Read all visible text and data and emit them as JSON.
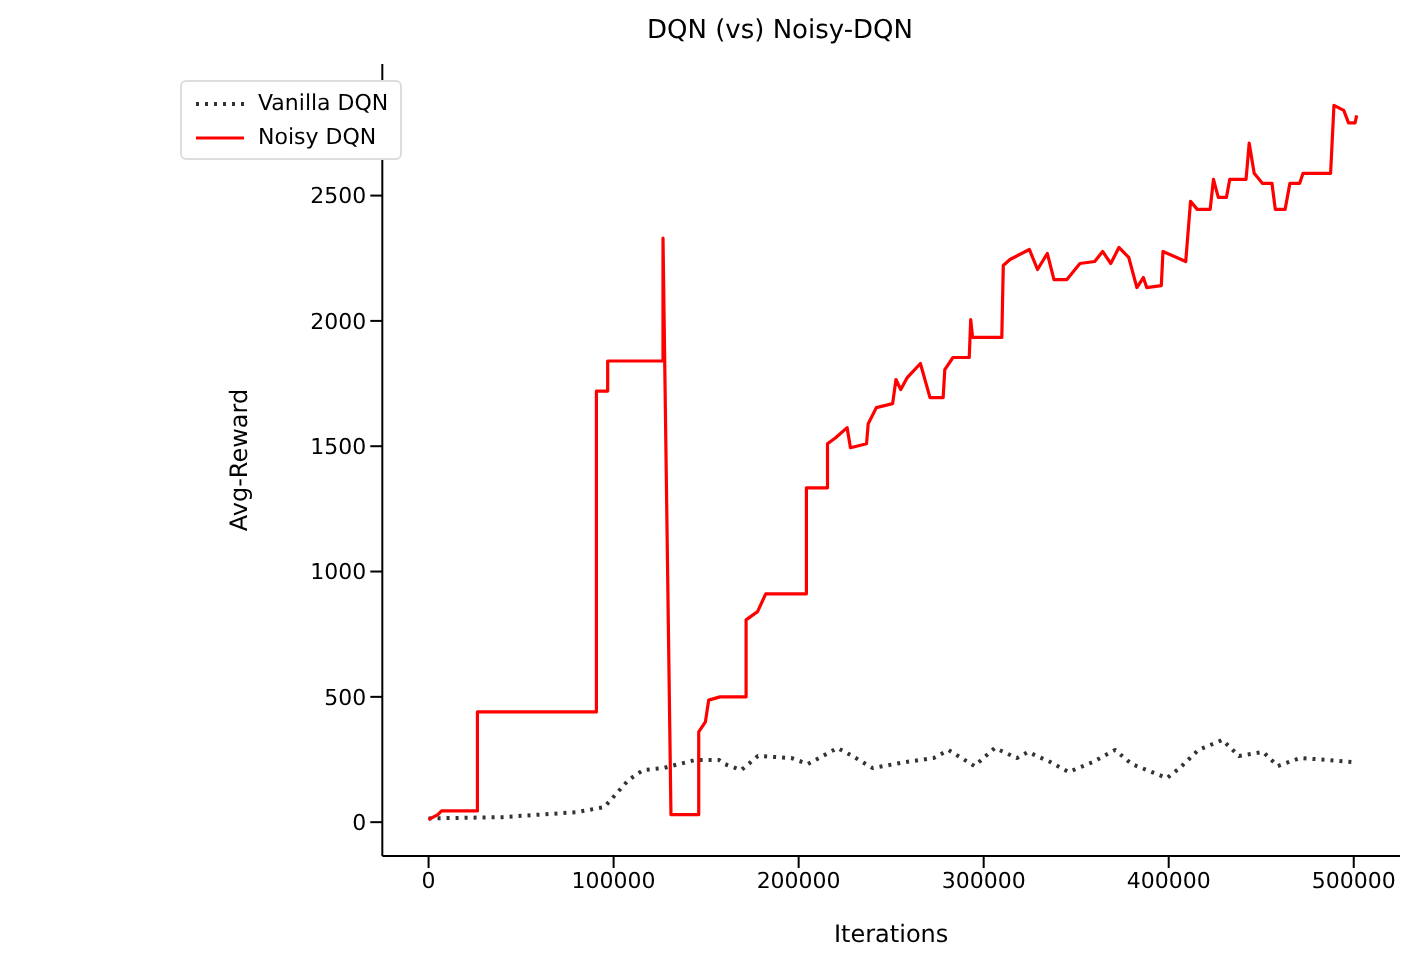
{
  "chart_data": {
    "type": "line",
    "title": "DQN (vs) Noisy-DQN",
    "xlabel": "Iterations",
    "ylabel": "Avg-Reward",
    "xlim": [
      -25000,
      525000
    ],
    "xticks": [
      0,
      100000,
      200000,
      300000,
      400000,
      500000
    ],
    "ylim": [
      -135,
      3025
    ],
    "yticks": [
      0,
      500,
      1000,
      1500,
      2000,
      2500
    ],
    "grid": false,
    "legend": "top left",
    "series": [
      {
        "name": "Vanilla DQN",
        "color": "#333333",
        "line_style": "dotted",
        "x": [
          0,
          40000,
          80000,
          95000,
          108000,
          116000,
          127000,
          144000,
          157000,
          160000,
          169000,
          178000,
          196000,
          205000,
          221000,
          229000,
          240000,
          258000,
          273000,
          281000,
          295000,
          306000,
          318000,
          324000,
          336000,
          346000,
          359000,
          371000,
          380000,
          399000,
          406000,
          416000,
          429000,
          438000,
          451000,
          459000,
          471000,
          486000,
          499000
        ],
        "values": [
          15,
          20,
          40,
          60,
          168,
          208,
          216,
          248,
          248,
          232,
          208,
          264,
          256,
          232,
          296,
          264,
          216,
          240,
          256,
          288,
          224,
          296,
          256,
          280,
          240,
          200,
          240,
          288,
          232,
          176,
          216,
          288,
          328,
          264,
          280,
          224,
          256,
          248,
          240
        ]
      },
      {
        "name": "Noisy DQN",
        "color": "#ff0000",
        "line_style": "solid",
        "x": [
          0,
          5000,
          7000,
          26400,
          26400,
          90700,
          90700,
          96800,
          96800,
          126700,
          126700,
          131000,
          146000,
          146000,
          149600,
          151400,
          157500,
          171600,
          171600,
          177800,
          182200,
          204200,
          204200,
          215600,
          215600,
          220000,
          226200,
          228000,
          236700,
          237600,
          242000,
          250800,
          252600,
          255200,
          258700,
          265800,
          271000,
          278100,
          279000,
          283400,
          292200,
          293000,
          294000,
          309800,
          310600,
          314200,
          324700,
          329100,
          334400,
          338000,
          345000,
          352000,
          360000,
          364300,
          368700,
          373100,
          378400,
          382800,
          386300,
          388100,
          396000,
          396900,
          409200,
          411800,
          415400,
          422400,
          424200,
          426800,
          431200,
          433000,
          441800,
          443500,
          446200,
          450600,
          455800,
          457600,
          462900,
          465500,
          470800,
          472600,
          487500,
          489300,
          494600,
          497200,
          500700,
          501600
        ],
        "values": [
          10,
          30,
          45,
          45,
          440,
          440,
          1720,
          1720,
          1840,
          1840,
          2330,
          30,
          30,
          360,
          400,
          487,
          500,
          500,
          807,
          840,
          911,
          911,
          1334,
          1334,
          1510,
          1534,
          1574,
          1494,
          1510,
          1590,
          1654,
          1670,
          1766,
          1726,
          1774,
          1830,
          1694,
          1694,
          1806,
          1854,
          1854,
          2005,
          1934,
          1934,
          2221,
          2245,
          2285,
          2205,
          2269,
          2165,
          2165,
          2229,
          2237,
          2277,
          2229,
          2293,
          2253,
          2133,
          2173,
          2133,
          2141,
          2277,
          2237,
          2477,
          2445,
          2445,
          2565,
          2493,
          2493,
          2565,
          2565,
          2709,
          2589,
          2549,
          2549,
          2445,
          2445,
          2549,
          2549,
          2589,
          2589,
          2860,
          2840,
          2790,
          2790,
          2820
        ]
      }
    ]
  }
}
